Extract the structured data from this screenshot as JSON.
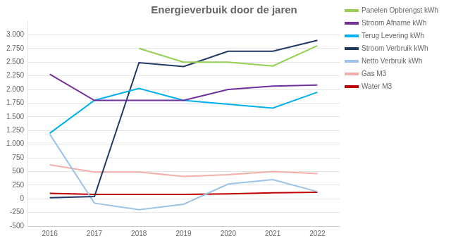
{
  "chart_data": {
    "type": "line",
    "title": "Energieverbuik door de jaren",
    "x": [
      2016,
      2017,
      2018,
      2019,
      2020,
      2021,
      2022
    ],
    "xlim": [
      2015.5,
      2022.5
    ],
    "xticks": [
      2016,
      2017,
      2018,
      2019,
      2020,
      2021,
      2022
    ],
    "series": [
      {
        "name": "Panelen Opbrengst kWh",
        "color": "#92D050",
        "values": [
          null,
          null,
          2750,
          2500,
          2500,
          2430,
          2800
        ]
      },
      {
        "name": "Stroom Afname kWh",
        "color": "#7030A0",
        "values": [
          2280,
          1800,
          1800,
          1800,
          2000,
          2060,
          2080
        ]
      },
      {
        "name": "Terug Levering kWh",
        "color": "#00B0F0",
        "values": [
          1200,
          1800,
          2020,
          1800,
          1730,
          1660,
          1950
        ]
      },
      {
        "name": "Stroom Verbruik kWh",
        "color": "#1F3864",
        "values": [
          20,
          40,
          2490,
          2420,
          2700,
          2700,
          2900
        ]
      },
      {
        "name": "Netto Verbruik kWh",
        "color": "#9DC3E6",
        "values": [
          1180,
          -80,
          -200,
          -100,
          270,
          350,
          130
        ]
      },
      {
        "name": "Gas M3",
        "color": "#F4AFAB",
        "values": [
          620,
          490,
          490,
          410,
          440,
          500,
          460
        ]
      },
      {
        "name": "Water M3",
        "color": "#C00000",
        "values": [
          100,
          80,
          80,
          80,
          90,
          110,
          120
        ]
      }
    ],
    "ylim": [
      -500,
      3250
    ],
    "yticks": [
      -500,
      -250,
      0,
      250,
      500,
      750,
      {
        "value": 1000,
        "label": "1.000"
      },
      {
        "value": 1250,
        "label": "1.250"
      },
      {
        "value": 1500,
        "label": "1.500"
      },
      {
        "value": 1750,
        "label": "1.750"
      },
      {
        "value": 2000,
        "label": "2.000"
      },
      {
        "value": 2250,
        "label": "2.250"
      },
      {
        "value": 2500,
        "label": "2.500"
      },
      {
        "value": 2750,
        "label": "2.750"
      },
      {
        "value": 3000,
        "label": "3.000"
      }
    ],
    "grid": "y",
    "legend": "right"
  }
}
